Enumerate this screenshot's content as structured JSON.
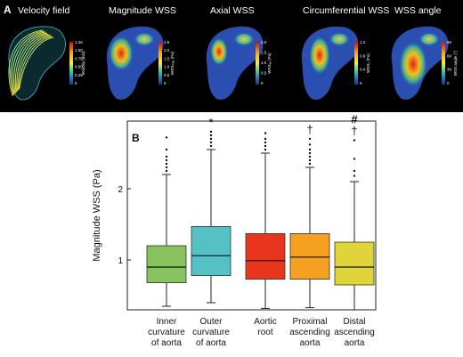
{
  "panel_a": {
    "letter": "A",
    "titles": [
      "Velocity field",
      "Magnitude WSS",
      "Axial WSS",
      "Circumferential WSS",
      "WSS angle"
    ],
    "colorbars": [
      {
        "label": "Velocity (m/s)",
        "ticks": [
          "1.25",
          "1.00",
          "0.75",
          "0.50",
          "0.25",
          "0"
        ]
      },
      {
        "label": "WSSₘₐₑ (Pa)",
        "ticks": [
          "2.5",
          "2.0",
          "1.5",
          "1.0",
          "0.5",
          "0"
        ]
      },
      {
        "label": "WSSₐₓ (Pa)",
        "ticks": [
          "2.0",
          "1.5",
          "1.0",
          "0.5",
          "0"
        ]
      },
      {
        "label": "WSSₔ (Pa)",
        "ticks": [
          "1.2",
          "0.8",
          "0.4",
          "0"
        ]
      },
      {
        "label": "WSS angle (°)",
        "ticks": [
          "90",
          "60",
          "30",
          "0"
        ]
      }
    ],
    "colors": {
      "background": "#000000",
      "aorta_base": "#2a4fb0"
    }
  },
  "chart_data": {
    "type": "box",
    "panel_letter": "B",
    "title": "",
    "xlabel": "",
    "ylabel": "Magnitude WSS (Pa)",
    "ylim": [
      0.3,
      2.95
    ],
    "yticks": [
      "1",
      "2"
    ],
    "grid": false,
    "categories": [
      {
        "label": [
          "Inner",
          "curvature",
          "of aorta"
        ]
      },
      {
        "label": [
          "Outer",
          "curvature",
          "of aorta"
        ]
      },
      {
        "label": [
          "Aortic",
          "root"
        ]
      },
      {
        "label": [
          "Proximal",
          "ascending",
          "aorta"
        ]
      },
      {
        "label": [
          "Distal",
          "ascending",
          "aorta"
        ]
      }
    ],
    "series": [
      {
        "color": "#86c35e",
        "whisker_low": 0.35,
        "q1": 0.68,
        "median": 0.9,
        "q3": 1.2,
        "whisker_high": 2.2,
        "outliers": [
          2.25,
          2.3,
          2.35,
          2.4,
          2.45,
          2.55,
          2.72
        ],
        "annotation": ""
      },
      {
        "color": "#56c1c4",
        "whisker_low": 0.4,
        "q1": 0.78,
        "median": 1.06,
        "q3": 1.47,
        "whisker_high": 2.55,
        "outliers": [
          2.6,
          2.65,
          2.7,
          2.75,
          2.8
        ],
        "annotation": "*"
      },
      {
        "color": "#e8361e",
        "whisker_low": 0.32,
        "q1": 0.73,
        "median": 0.99,
        "q3": 1.37,
        "whisker_high": 2.5,
        "outliers": [
          2.55,
          2.6,
          2.65,
          2.7,
          2.78
        ],
        "annotation": ""
      },
      {
        "color": "#f5a021",
        "whisker_low": 0.33,
        "q1": 0.73,
        "median": 1.04,
        "q3": 1.37,
        "whisker_high": 2.3,
        "outliers": [
          2.35,
          2.4,
          2.45,
          2.5,
          2.55,
          2.62,
          2.7
        ],
        "annotation": "†"
      },
      {
        "color": "#dfd53b",
        "whisker_low": 0.3,
        "q1": 0.65,
        "median": 0.9,
        "q3": 1.25,
        "whisker_high": 2.1,
        "outliers": [
          2.18,
          2.25,
          2.42,
          2.68
        ],
        "annotation": "#\n†"
      }
    ]
  }
}
